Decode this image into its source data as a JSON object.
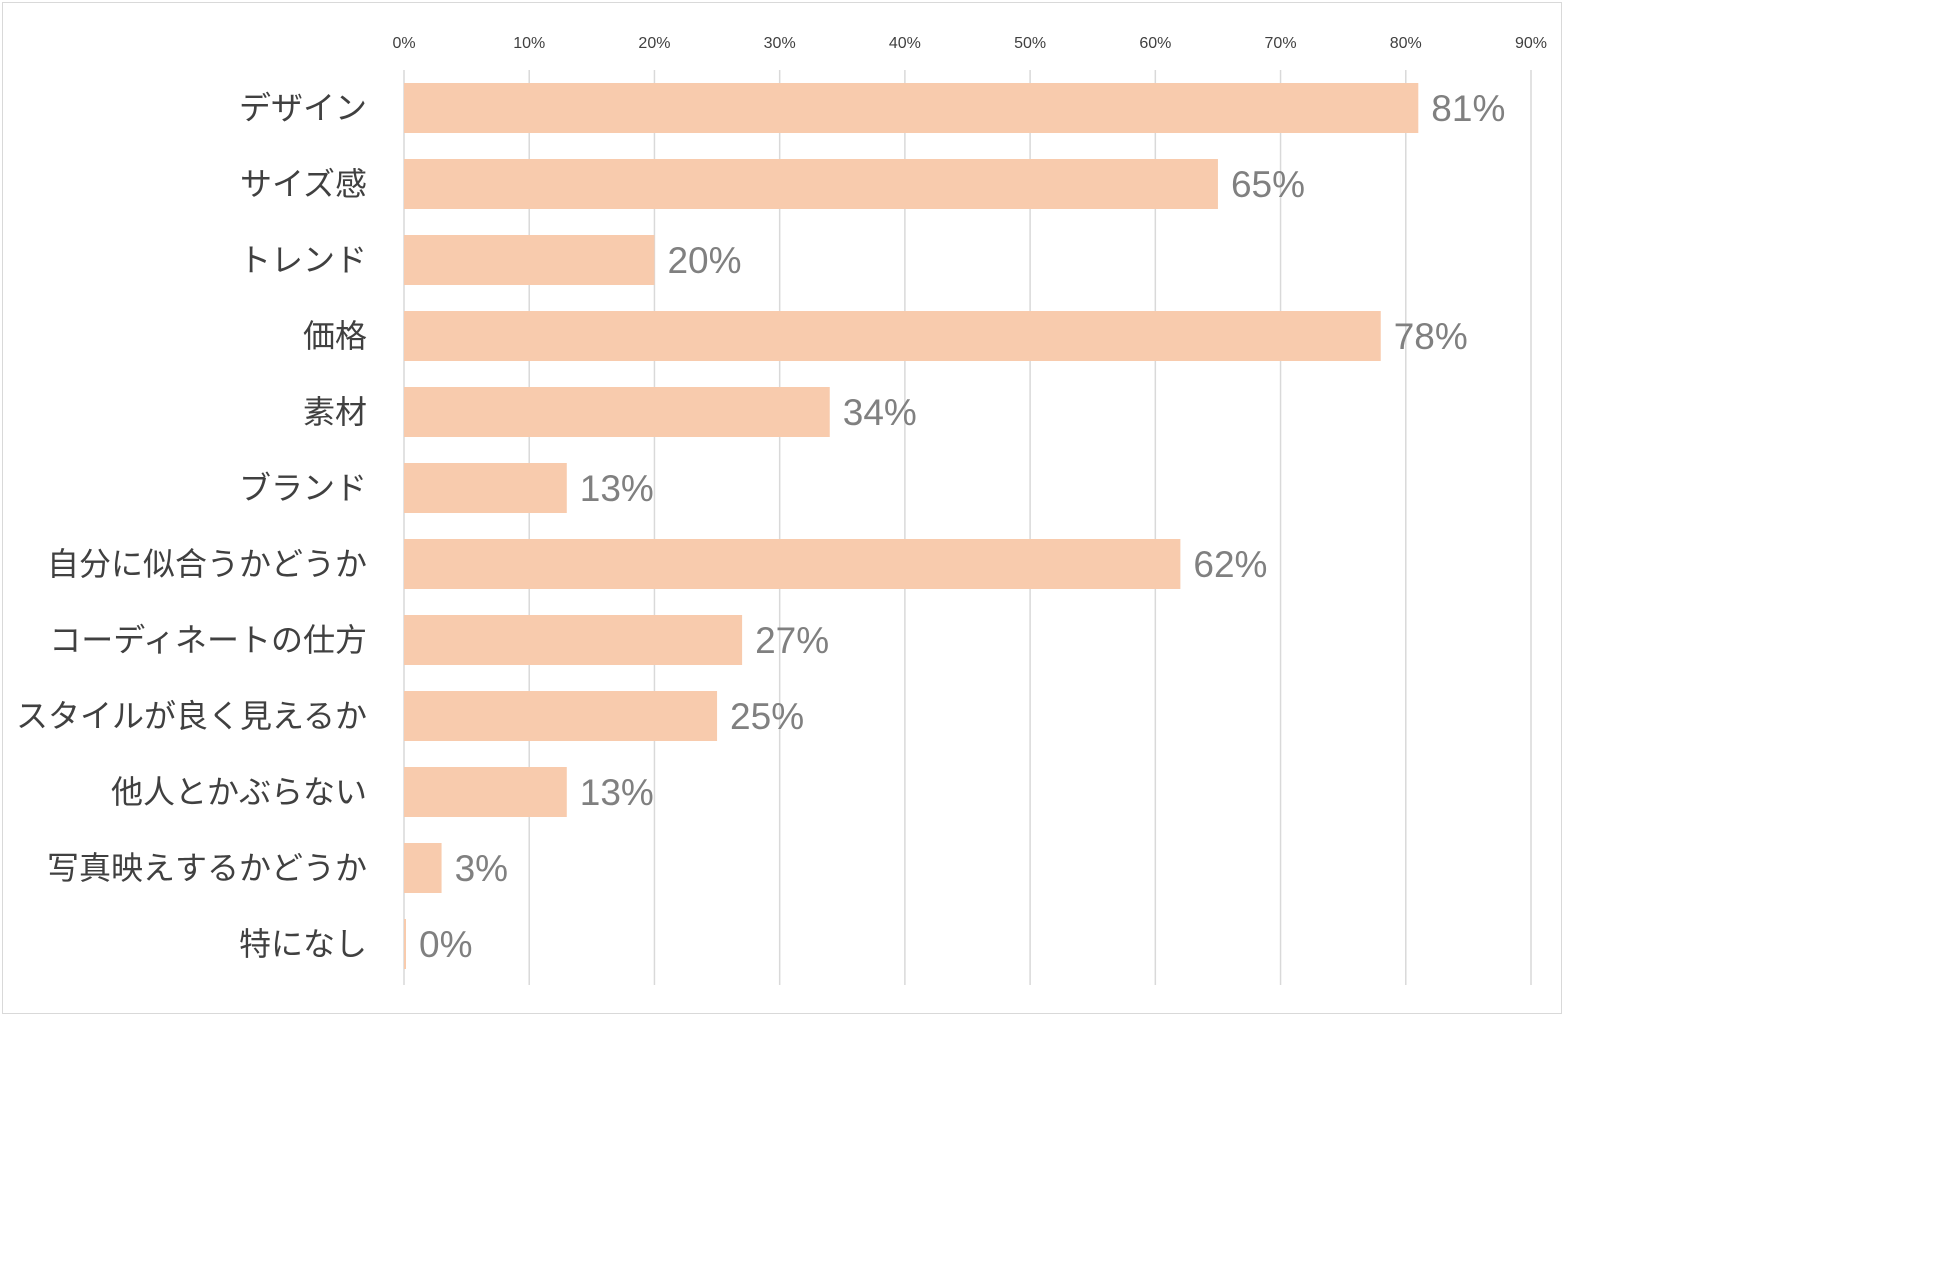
{
  "chart_data": {
    "type": "bar",
    "orientation": "horizontal",
    "categories": [
      "デザイン",
      "サイズ感",
      "トレンド",
      "価格",
      "素材",
      "ブランド",
      "自分に似合うかどうか",
      "コーディネートの仕方",
      "スタイルが良く見えるか",
      "他人とかぶらない",
      "写真映えするかどうか",
      "特になし"
    ],
    "values": [
      81,
      65,
      20,
      78,
      34,
      13,
      62,
      27,
      25,
      13,
      3,
      0
    ],
    "data_labels": [
      "81%",
      "65%",
      "20%",
      "78%",
      "34%",
      "13%",
      "62%",
      "27%",
      "25%",
      "13%",
      "3%",
      "0%"
    ],
    "x_ticks": [
      "0%",
      "10%",
      "20%",
      "30%",
      "40%",
      "50%",
      "60%",
      "70%",
      "80%",
      "90%"
    ],
    "xlim": [
      0,
      90
    ],
    "x_axis_position": "top",
    "grid": true,
    "legend": "none",
    "bar_color": "#f8cbad",
    "grid_color": "#d9d9d9",
    "label_color": "#404040",
    "data_label_color": "#808080"
  }
}
